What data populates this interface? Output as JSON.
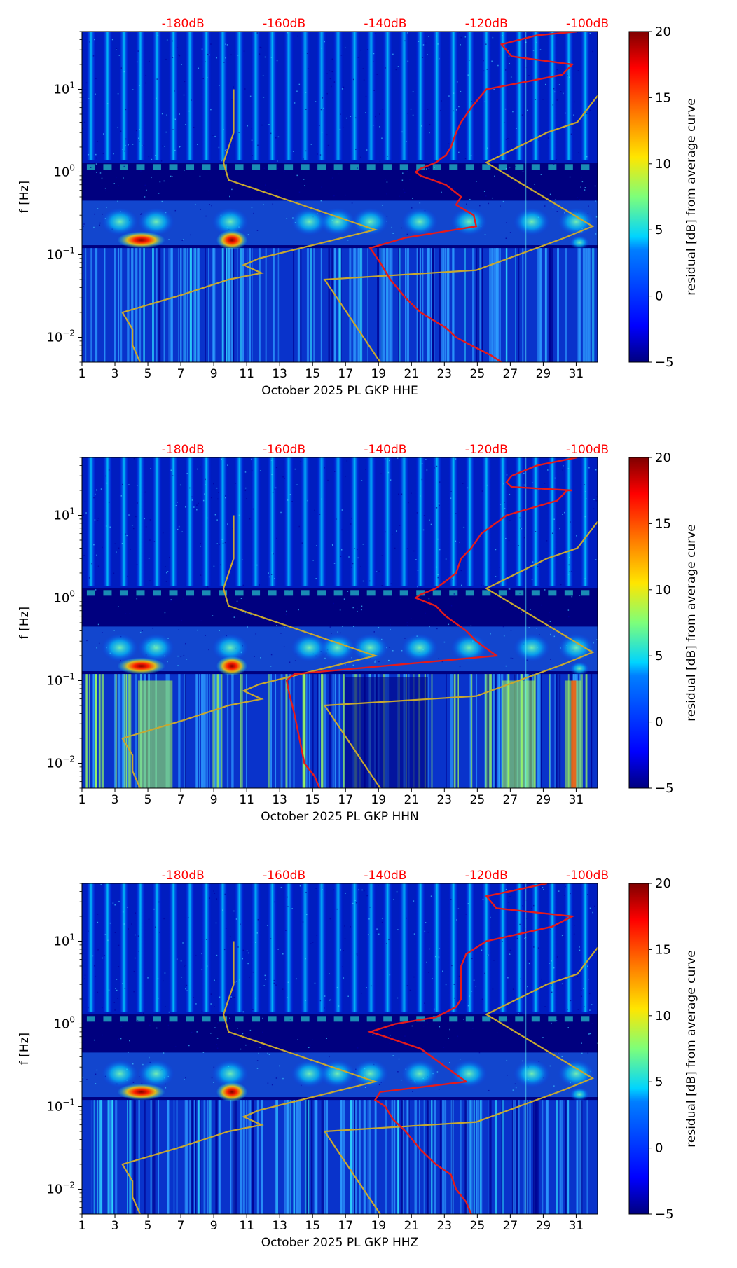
{
  "figure": {
    "colorbar": {
      "label": "residual [dB] from average curve",
      "ticks": [
        "20",
        "15",
        "10",
        "5",
        "0",
        "−5"
      ],
      "tick_values": [
        20,
        15,
        10,
        5,
        0,
        -5
      ],
      "range": [
        -5,
        20
      ],
      "colormap": [
        "#00007f",
        "#0000ff",
        "#007fff",
        "#00ffff",
        "#7fff7f",
        "#ffff00",
        "#ff7f00",
        "#ff0000",
        "#7f0000"
      ]
    },
    "colors": {
      "psd_line": "#e41a1c",
      "noise_model_line": "#c8a830",
      "db_labels": "#ff0000",
      "background": "#00007f"
    }
  },
  "chart_data": [
    {
      "type": "heatmap",
      "title": "",
      "xlabel": "October 2025 PL GKP  HHE",
      "ylabel": "f [Hz]",
      "xticks": [
        "1",
        "3",
        "5",
        "7",
        "9",
        "11",
        "13",
        "15",
        "17",
        "19",
        "21",
        "23",
        "25",
        "27",
        "29",
        "31"
      ],
      "xtick_values": [
        1,
        3,
        5,
        7,
        9,
        11,
        13,
        15,
        17,
        19,
        21,
        23,
        25,
        27,
        29,
        31
      ],
      "yticks": [
        "10⁻²",
        "10⁻¹",
        "10⁰",
        "10¹"
      ],
      "ytick_values": [
        0.01,
        0.1,
        1,
        10
      ],
      "xlim": [
        1,
        32.3
      ],
      "ylim": [
        0.005,
        50
      ],
      "top_labels": [
        "-180dB",
        "-160dB",
        "-140dB",
        "-120dB",
        "-100dB"
      ],
      "top_label_values": [
        -180,
        -160,
        -140,
        -120,
        -100
      ],
      "db_axis_range": [
        -200,
        -98
      ],
      "series": [
        {
          "name": "noise model (NLNM / NHNM)",
          "db": [
            -189,
            -189,
            -186,
            -183,
            -186,
            -180,
            -176,
            -161,
            -162,
            -155,
            -167,
            -167,
            -171,
            -176,
            -176,
            -176,
            -194,
            -195,
            -196,
            -196,
            -198,
            -197
          ],
          "f": [
            0.005,
            0.0075,
            0.013,
            0.02,
            0.03,
            0.045,
            0.06,
            0.075,
            0.09,
            0.13,
            0.17,
            0.35,
            0.5,
            0.8,
            1.2,
            1.8,
            2.5,
            4,
            6,
            8,
            10,
            0.005
          ]
        }
      ]
    },
    {
      "type": "heatmap",
      "title": "",
      "xlabel": "October 2025 PL GKP  HHN",
      "ylabel": "f [Hz]",
      "xticks": [
        "1",
        "3",
        "5",
        "7",
        "9",
        "11",
        "13",
        "15",
        "17",
        "19",
        "21",
        "23",
        "25",
        "27",
        "29",
        "31"
      ],
      "xtick_values": [
        1,
        3,
        5,
        7,
        9,
        11,
        13,
        15,
        17,
        19,
        21,
        23,
        25,
        27,
        29,
        31
      ],
      "yticks": [
        "10⁻²",
        "10⁻¹",
        "10⁰",
        "10¹"
      ],
      "ytick_values": [
        0.01,
        0.1,
        1,
        10
      ],
      "xlim": [
        1,
        32.3
      ],
      "ylim": [
        0.005,
        50
      ],
      "top_labels": [
        "-180dB",
        "-160dB",
        "-140dB",
        "-120dB",
        "-100dB"
      ],
      "top_label_values": [
        -180,
        -160,
        -140,
        -120,
        -100
      ],
      "db_axis_range": [
        -200,
        -98
      ]
    },
    {
      "type": "heatmap",
      "title": "",
      "xlabel": "October 2025 PL GKP  HHZ",
      "ylabel": "f [Hz]",
      "xticks": [
        "1",
        "3",
        "5",
        "7",
        "9",
        "11",
        "13",
        "15",
        "17",
        "19",
        "21",
        "23",
        "25",
        "27",
        "29",
        "31"
      ],
      "xtick_values": [
        1,
        3,
        5,
        7,
        9,
        11,
        13,
        15,
        17,
        19,
        21,
        23,
        25,
        27,
        29,
        31
      ],
      "yticks": [
        "10⁻²",
        "10⁻¹",
        "10⁰",
        "10¹"
      ],
      "ytick_values": [
        0.01,
        0.1,
        1,
        10
      ],
      "xlim": [
        1,
        32.3
      ],
      "ylim": [
        0.005,
        50
      ],
      "top_labels": [
        "-180dB",
        "-160dB",
        "-140dB",
        "-120dB",
        "-100dB"
      ],
      "top_label_values": [
        -180,
        -160,
        -140,
        -120,
        -100
      ],
      "db_axis_range": [
        -200,
        -98
      ]
    }
  ],
  "lines": {
    "nlnm": {
      "f": [
        0.005,
        0.008,
        0.0125,
        0.02,
        0.033,
        0.05,
        0.06,
        0.075,
        0.09,
        0.2,
        0.8,
        1.3,
        3,
        10
      ],
      "db": [
        -188.5,
        -190,
        -190,
        -192,
        -180,
        -171,
        -164.5,
        -168,
        -165,
        -142,
        -171,
        -172,
        -170,
        -170
      ]
    },
    "nhnm": {
      "f": [
        0.005,
        0.05,
        0.065,
        0.16,
        0.22,
        1.3,
        3,
        4,
        10
      ],
      "db": [
        -141,
        -152,
        -122,
        -104.5,
        -99,
        -120,
        -108,
        -102,
        -97
      ]
    },
    "psd": [
      {
        "f": [
          0.005,
          0.006,
          0.008,
          0.01,
          0.013,
          0.02,
          0.03,
          0.05,
          0.08,
          0.12,
          0.16,
          0.22,
          0.3,
          0.4,
          0.5,
          0.7,
          0.9,
          1.0,
          1.1,
          1.3,
          1.6,
          2.0,
          3.0,
          4.0,
          6.0,
          10,
          15,
          20,
          20,
          25,
          35,
          45,
          50
        ],
        "db": [
          -117,
          -119,
          -123,
          -126,
          -128,
          -133,
          -136,
          -139,
          -141,
          -143,
          -136,
          -122,
          -122.5,
          -126,
          -125,
          -128,
          -133,
          -134,
          -133,
          -130,
          -128,
          -127,
          -126,
          -125,
          -123,
          -120,
          -105,
          -103,
          -103,
          -115,
          -117,
          -110,
          -102
        ]
      },
      {
        "f": [
          0.005,
          0.007,
          0.01,
          0.02,
          0.04,
          0.07,
          0.1,
          0.12,
          0.2,
          0.3,
          0.4,
          0.6,
          0.8,
          1.0,
          1.1,
          1.3,
          1.6,
          2.0,
          3.0,
          4.0,
          6.0,
          10,
          15,
          20,
          20,
          22,
          25,
          30,
          40,
          50
        ],
        "db": [
          -153,
          -154,
          -156,
          -157,
          -158,
          -159,
          -159.5,
          -158,
          -118,
          -122,
          -124,
          -128,
          -130,
          -134,
          -133,
          -130,
          -128,
          -126,
          -125,
          -123,
          -121,
          -116,
          -106,
          -104,
          -103,
          -115,
          -116,
          -115,
          -110,
          -102
        ]
      },
      {
        "f": [
          0.005,
          0.007,
          0.01,
          0.015,
          0.02,
          0.03,
          0.05,
          0.07,
          0.1,
          0.12,
          0.15,
          0.2,
          0.3,
          0.5,
          0.7,
          0.8,
          1.0,
          1.2,
          1.6,
          2.0,
          3.0,
          4.0,
          5.0,
          7.0,
          10,
          15,
          20,
          20,
          25,
          35,
          50
        ],
        "db": [
          -123,
          -124,
          -126,
          -127,
          -130,
          -133,
          -136,
          -138.5,
          -140,
          -142,
          -141,
          -124,
          -128,
          -133,
          -140,
          -143,
          -138,
          -130,
          -126,
          -125,
          -125,
          -125,
          -125,
          -124,
          -120,
          -107,
          -103,
          -103,
          -118,
          -120,
          -108
        ]
      }
    ]
  }
}
